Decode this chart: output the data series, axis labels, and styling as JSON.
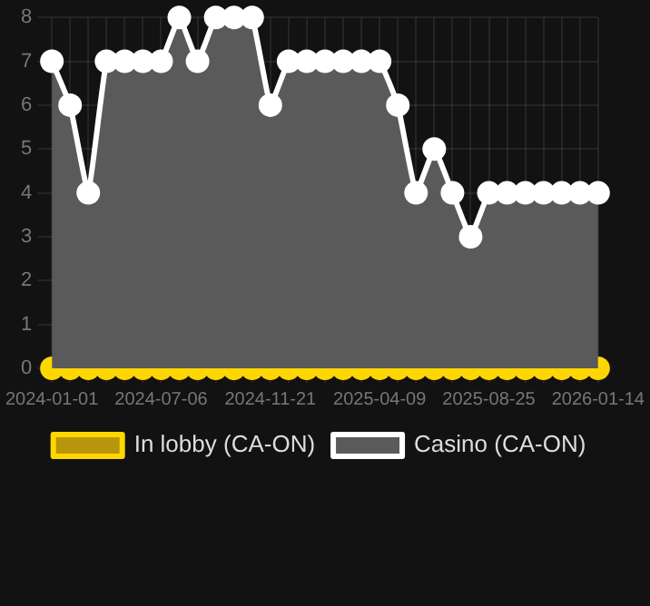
{
  "chart_data": {
    "type": "area",
    "categories": [
      "2024-01-01",
      null,
      null,
      null,
      null,
      null,
      "2024-07-06",
      null,
      null,
      null,
      null,
      null,
      "2024-11-21",
      null,
      null,
      null,
      null,
      null,
      "2025-04-09",
      null,
      null,
      null,
      null,
      null,
      "2025-08-25",
      null,
      null,
      null,
      null,
      null,
      "2026-01-14"
    ],
    "series": [
      {
        "name": "In lobby (CA-ON)",
        "color": "#ffd700",
        "type": "line",
        "values": [
          0,
          0,
          0,
          0,
          0,
          0,
          0,
          0,
          0,
          0,
          0,
          0,
          0,
          0,
          0,
          0,
          0,
          0,
          0,
          0,
          0,
          0,
          0,
          0,
          0,
          0,
          0,
          0,
          0,
          0,
          0
        ]
      },
      {
        "name": "Casino (CA-ON)",
        "color": "#ffffff",
        "values": [
          7,
          6,
          4,
          7,
          7,
          7,
          7,
          8,
          7,
          8,
          8,
          8,
          6,
          7,
          7,
          7,
          7,
          7,
          7,
          6,
          4,
          5,
          4,
          3,
          4,
          4,
          4,
          4,
          4,
          4,
          4
        ]
      }
    ],
    "ylim": [
      0,
      8
    ],
    "yticks": [
      0,
      1,
      2,
      3,
      4,
      5,
      6,
      7,
      8
    ],
    "grid": true,
    "legend": "bottom",
    "marker": "circle"
  }
}
